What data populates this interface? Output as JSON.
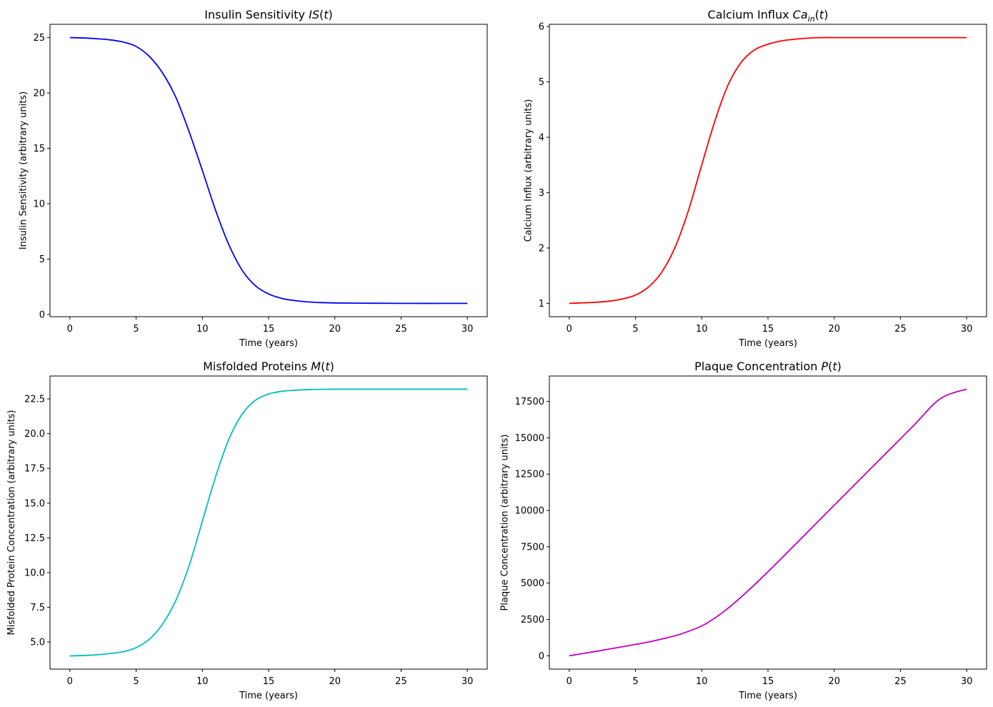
{
  "chart_data": [
    {
      "type": "line",
      "title_main": "Insulin Sensitivity ",
      "title_math": "IS",
      "title_sub": "",
      "title_tail": "(t)",
      "xlabel": "Time (years)",
      "ylabel": "Insulin Sensitivity (arbitrary units)",
      "xlim": [
        -1.5,
        31.5
      ],
      "ylim": [
        -0.2,
        26.2
      ],
      "xticks": [
        0,
        5,
        10,
        15,
        20,
        25,
        30
      ],
      "xtick_labels": [
        "0",
        "5",
        "10",
        "15",
        "20",
        "25",
        "30"
      ],
      "yticks": [
        0,
        5,
        10,
        15,
        20,
        25
      ],
      "ytick_labels": [
        "0",
        "5",
        "10",
        "15",
        "20",
        "25"
      ],
      "color": "#0000ff",
      "series": [
        {
          "x": [
            0,
            1,
            2,
            3,
            4,
            5,
            6,
            7,
            8,
            9,
            10,
            11,
            12,
            13,
            14,
            15,
            16,
            17,
            18,
            19,
            20,
            22,
            24,
            26,
            28,
            30
          ],
          "y": [
            25.0,
            24.97,
            24.9,
            24.8,
            24.6,
            24.2,
            23.3,
            21.8,
            19.6,
            16.5,
            13.0,
            9.4,
            6.3,
            4.0,
            2.6,
            1.85,
            1.45,
            1.25,
            1.13,
            1.07,
            1.04,
            1.02,
            1.01,
            1.0,
            1.0,
            1.0
          ]
        }
      ]
    },
    {
      "type": "line",
      "title_main": "Calcium Influx ",
      "title_math": "Ca",
      "title_sub": "in",
      "title_tail": "(t)",
      "xlabel": "Time (years)",
      "ylabel": "Calcium Influx (arbitrary units)",
      "xlim": [
        -1.5,
        31.5
      ],
      "ylim": [
        0.76,
        6.04
      ],
      "xticks": [
        0,
        5,
        10,
        15,
        20,
        25,
        30
      ],
      "xtick_labels": [
        "0",
        "5",
        "10",
        "15",
        "20",
        "25",
        "30"
      ],
      "yticks": [
        1,
        2,
        3,
        4,
        5,
        6
      ],
      "ytick_labels": [
        "1",
        "2",
        "3",
        "4",
        "5",
        "6"
      ],
      "color": "#ff0000",
      "series": [
        {
          "x": [
            0,
            1,
            2,
            3,
            4,
            5,
            6,
            7,
            8,
            9,
            10,
            11,
            12,
            13,
            14,
            15,
            16,
            17,
            18,
            19,
            20,
            22,
            24,
            26,
            28,
            30
          ],
          "y": [
            1.0,
            1.01,
            1.02,
            1.04,
            1.08,
            1.15,
            1.3,
            1.57,
            2.02,
            2.68,
            3.5,
            4.3,
            4.95,
            5.36,
            5.58,
            5.68,
            5.74,
            5.77,
            5.79,
            5.8,
            5.8,
            5.8,
            5.8,
            5.8,
            5.8,
            5.8
          ]
        }
      ]
    },
    {
      "type": "line",
      "title_main": "Misfolded Proteins ",
      "title_math": "M",
      "title_sub": "",
      "title_tail": "(t)",
      "xlabel": "Time (years)",
      "ylabel": "Misfolded Protein Concentration (arbitrary units)",
      "xlim": [
        -1.5,
        31.5
      ],
      "ylim": [
        3.05,
        24.15
      ],
      "xticks": [
        0,
        5,
        10,
        15,
        20,
        25,
        30
      ],
      "xtick_labels": [
        "0",
        "5",
        "10",
        "15",
        "20",
        "25",
        "30"
      ],
      "yticks": [
        5.0,
        7.5,
        10.0,
        12.5,
        15.0,
        17.5,
        20.0,
        22.5
      ],
      "ytick_labels": [
        "5.0",
        "7.5",
        "10.0",
        "12.5",
        "15.0",
        "17.5",
        "20.0",
        "22.5"
      ],
      "color": "#00bfbf",
      "series": [
        {
          "x": [
            0,
            1,
            2,
            3,
            4,
            5,
            6,
            7,
            8,
            9,
            10,
            11,
            12,
            13,
            14,
            15,
            16,
            17,
            18,
            19,
            20,
            22,
            24,
            26,
            28,
            30
          ],
          "y": [
            4.0,
            4.03,
            4.08,
            4.17,
            4.3,
            4.6,
            5.2,
            6.3,
            8.0,
            10.5,
            13.7,
            16.9,
            19.6,
            21.4,
            22.4,
            22.85,
            23.05,
            23.13,
            23.17,
            23.19,
            23.2,
            23.2,
            23.2,
            23.2,
            23.2,
            23.2
          ]
        }
      ]
    },
    {
      "type": "line",
      "title_main": "Plaque Concentration ",
      "title_math": "P",
      "title_sub": "",
      "title_tail": "(t)",
      "xlabel": "Time (years)",
      "ylabel": "Plaque Concentration (arbitrary units)",
      "xlim": [
        -1.5,
        31.5
      ],
      "ylim": [
        -920,
        19250
      ],
      "xticks": [
        0,
        5,
        10,
        15,
        20,
        25,
        30
      ],
      "xtick_labels": [
        "0",
        "5",
        "10",
        "15",
        "20",
        "25",
        "30"
      ],
      "yticks": [
        0,
        2500,
        5000,
        7500,
        10000,
        12500,
        15000,
        17500
      ],
      "ytick_labels": [
        "0",
        "2500",
        "5000",
        "7500",
        "10000",
        "12500",
        "15000",
        "17500"
      ],
      "color": "#bf00bf",
      "series": [
        {
          "x": [
            0,
            2,
            4,
            6,
            8,
            9,
            10,
            11,
            12,
            13,
            14,
            15,
            16,
            18,
            20,
            22,
            24,
            26,
            28,
            30
          ],
          "y": [
            0,
            300,
            620,
            950,
            1380,
            1680,
            2050,
            2600,
            3280,
            4060,
            4900,
            5780,
            6680,
            8520,
            10360,
            12190,
            14020,
            15850,
            17680,
            18350
          ]
        }
      ]
    }
  ]
}
